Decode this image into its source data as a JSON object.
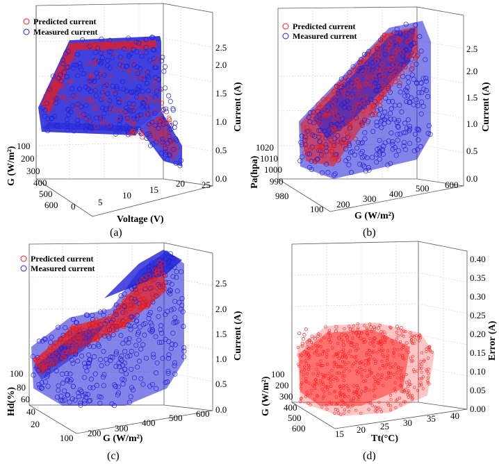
{
  "colors": {
    "predicted": "#e81c1c",
    "measured": "#1f1fd6",
    "error": "#ff1a1a"
  },
  "chart_data": [
    {
      "id": "a",
      "type": "scatter",
      "caption": "(a)",
      "legend": [
        "Predicted current",
        "Measured current"
      ],
      "axes": {
        "x": {
          "label": "Voltage (V)",
          "ticks": [
            "0",
            "5",
            "10",
            "15",
            "20",
            "25"
          ],
          "range": [
            -3,
            25
          ]
        },
        "y": {
          "label": "G (W/m²)",
          "ticks": [
            "100",
            "200",
            "300",
            "400",
            "500",
            "600"
          ],
          "range": [
            100,
            650
          ]
        },
        "z": {
          "label": "Current (A)",
          "ticks": [
            "0.0",
            "0.5",
            "1.0",
            "1.5",
            "2.0",
            "2.5"
          ],
          "range": [
            0,
            2.8
          ]
        }
      },
      "description_series": [
        {
          "name": "Predicted current"
        },
        {
          "name": "Measured current"
        }
      ]
    },
    {
      "id": "b",
      "type": "scatter",
      "caption": "(b)",
      "legend": [
        "Predicted current",
        "Measured current"
      ],
      "axes": {
        "x": {
          "label": "G (W/m²)",
          "ticks": [
            "100",
            "200",
            "300",
            "400",
            "500",
            "600"
          ],
          "range": [
            100,
            600
          ]
        },
        "y": {
          "label": "Pa(hpa)",
          "ticks": [
            "980",
            "990",
            "1000",
            "1010",
            "1020"
          ],
          "range": [
            975,
            1025
          ]
        },
        "z": {
          "label": "Current (A)",
          "ticks": [
            "0.0",
            "0.5",
            "1.0",
            "1.5",
            "2.0",
            "2.5"
          ],
          "range": [
            0,
            2.8
          ]
        }
      }
    },
    {
      "id": "c",
      "type": "scatter",
      "caption": "(c)",
      "legend": [
        "Predicted current",
        "Measured current"
      ],
      "axes": {
        "x": {
          "label": "G (W/m²)",
          "ticks": [
            "100",
            "200",
            "300",
            "400",
            "500",
            "600"
          ],
          "range": [
            100,
            600
          ]
        },
        "y": {
          "label": "Hd(%)",
          "ticks": [
            "20",
            "40",
            "60",
            "80",
            "100"
          ],
          "range": [
            10,
            110
          ]
        },
        "z": {
          "label": "Current (A)",
          "ticks": [
            "0.0",
            "0.5",
            "1.0",
            "1.5",
            "2.0",
            "2.5"
          ],
          "range": [
            0,
            2.8
          ]
        }
      }
    },
    {
      "id": "d",
      "type": "scatter",
      "caption": "(d)",
      "legend": [],
      "axes": {
        "x": {
          "label": "Tt(°C)",
          "ticks": [
            "15",
            "20",
            "25",
            "30",
            "35",
            "40"
          ],
          "range": [
            12,
            40
          ]
        },
        "y": {
          "label": "G (W/m²)",
          "ticks": [
            "100",
            "200",
            "300",
            "400",
            "500",
            "600"
          ],
          "range": [
            100,
            650
          ]
        },
        "z": {
          "label": "Error (A)",
          "ticks": [
            "0.00",
            "0.05",
            "0.10",
            "0.15",
            "0.20",
            "0.25",
            "0.30",
            "0.35",
            "0.40"
          ],
          "range": [
            0,
            0.42
          ]
        }
      }
    }
  ]
}
